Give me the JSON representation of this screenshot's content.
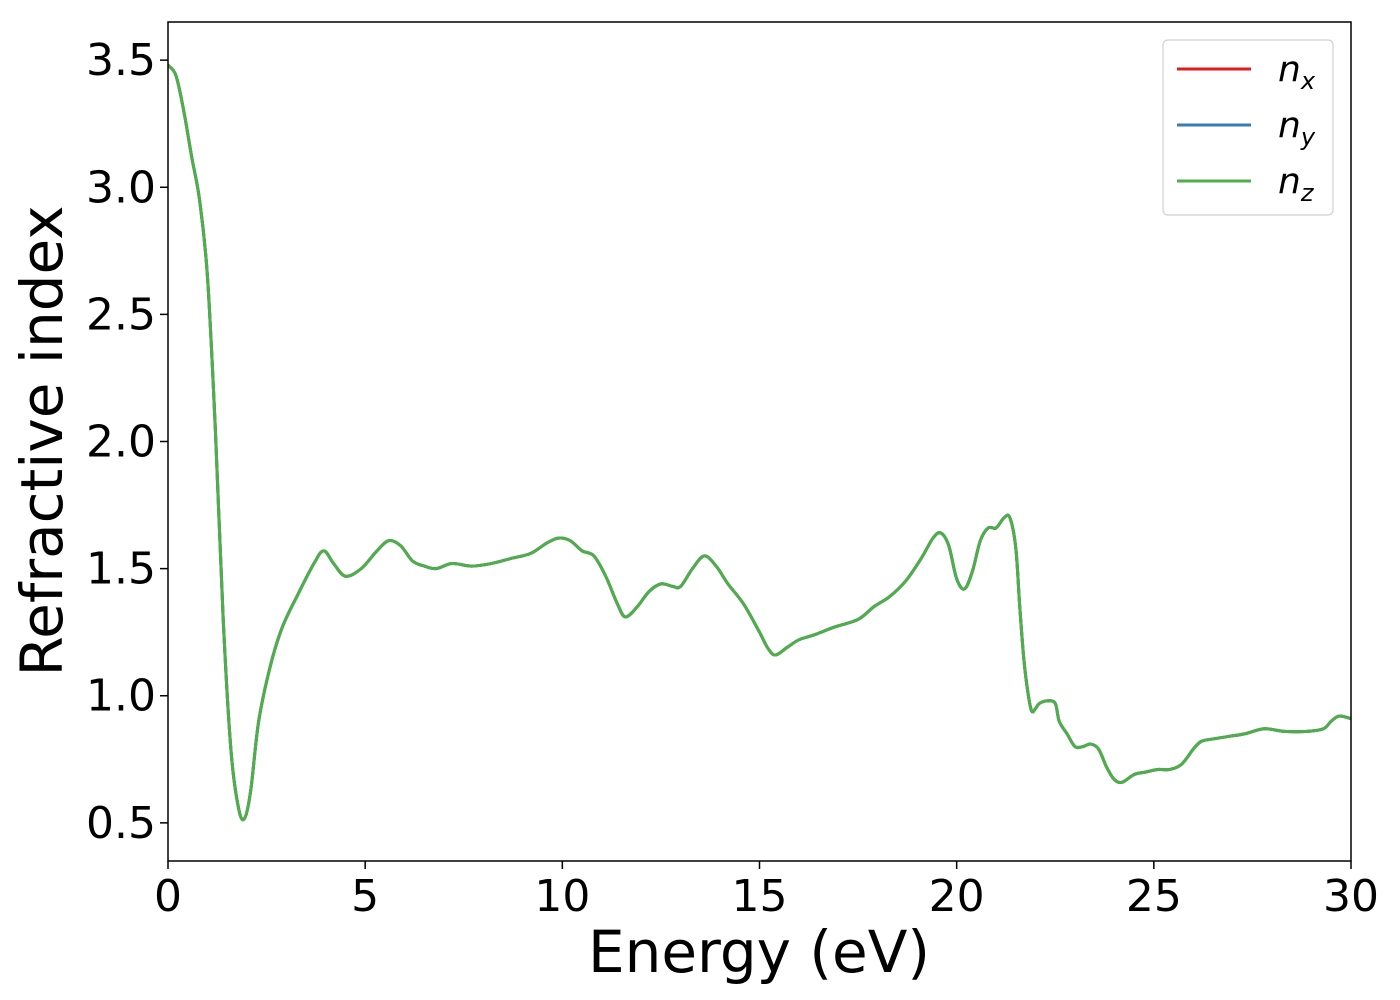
{
  "chart_data": {
    "type": "line",
    "title": "",
    "xlabel": "Energy (eV)",
    "ylabel": "Refractive index",
    "xlim": [
      0,
      30
    ],
    "ylim": [
      0.35,
      3.65
    ],
    "x_ticks": [
      0,
      5,
      10,
      15,
      20,
      25,
      30
    ],
    "x_tick_labels": [
      "0",
      "5",
      "10",
      "15",
      "20",
      "25",
      "30"
    ],
    "y_ticks": [
      0.5,
      1.0,
      1.5,
      2.0,
      2.5,
      3.0,
      3.5
    ],
    "y_tick_labels": [
      "0.5",
      "1.0",
      "1.5",
      "2.0",
      "2.5",
      "3.0",
      "3.5"
    ],
    "grid": false,
    "legend_position": "top-right",
    "x": [
      0,
      0.2,
      0.4,
      0.6,
      0.8,
      1.0,
      1.2,
      1.4,
      1.6,
      1.8,
      1.95,
      2.1,
      2.3,
      2.6,
      2.9,
      3.3,
      3.7,
      3.95,
      4.2,
      4.5,
      4.9,
      5.3,
      5.6,
      5.9,
      6.2,
      6.5,
      6.8,
      7.2,
      7.7,
      8.2,
      8.7,
      9.2,
      9.6,
      9.9,
      10.2,
      10.5,
      10.8,
      11.1,
      11.4,
      11.6,
      11.9,
      12.2,
      12.5,
      12.8,
      13.0,
      13.3,
      13.6,
      13.9,
      14.2,
      14.6,
      15.0,
      15.2,
      15.4,
      15.7,
      16.0,
      16.4,
      16.9,
      17.5,
      17.9,
      18.3,
      18.7,
      19.1,
      19.4,
      19.6,
      19.8,
      20.0,
      20.2,
      20.4,
      20.6,
      20.8,
      21.0,
      21.2,
      21.35,
      21.5,
      21.6,
      21.7,
      21.8,
      21.9,
      22.0,
      22.1,
      22.3,
      22.5,
      22.6,
      22.8,
      23.0,
      23.2,
      23.4,
      23.6,
      23.8,
      24.0,
      24.2,
      24.5,
      24.8,
      25.1,
      25.4,
      25.7,
      26.0,
      26.2,
      26.5,
      26.9,
      27.3,
      27.8,
      28.3,
      28.9,
      29.3,
      29.5,
      29.7,
      30.0
    ],
    "y_common": [
      3.48,
      3.44,
      3.3,
      3.12,
      2.95,
      2.65,
      2.05,
      1.3,
      0.78,
      0.55,
      0.52,
      0.63,
      0.9,
      1.12,
      1.27,
      1.4,
      1.52,
      1.57,
      1.52,
      1.47,
      1.5,
      1.57,
      1.61,
      1.59,
      1.53,
      1.51,
      1.5,
      1.52,
      1.51,
      1.52,
      1.54,
      1.56,
      1.6,
      1.62,
      1.61,
      1.57,
      1.55,
      1.47,
      1.36,
      1.31,
      1.35,
      1.41,
      1.44,
      1.43,
      1.43,
      1.5,
      1.55,
      1.51,
      1.44,
      1.36,
      1.25,
      1.19,
      1.16,
      1.19,
      1.22,
      1.24,
      1.27,
      1.3,
      1.35,
      1.39,
      1.45,
      1.54,
      1.62,
      1.64,
      1.59,
      1.46,
      1.42,
      1.49,
      1.61,
      1.66,
      1.66,
      1.7,
      1.7,
      1.58,
      1.35,
      1.15,
      1.02,
      0.94,
      0.95,
      0.97,
      0.98,
      0.97,
      0.9,
      0.85,
      0.8,
      0.8,
      0.81,
      0.79,
      0.72,
      0.67,
      0.66,
      0.69,
      0.7,
      0.71,
      0.71,
      0.73,
      0.79,
      0.82,
      0.83,
      0.84,
      0.85,
      0.87,
      0.86,
      0.86,
      0.87,
      0.9,
      0.92,
      0.91
    ],
    "series": [
      {
        "name": "n_x",
        "label_base": "n",
        "label_sub": "x",
        "color": "#e41a1c"
      },
      {
        "name": "n_y",
        "label_base": "n",
        "label_sub": "y",
        "color": "#377eb8"
      },
      {
        "name": "n_z",
        "label_base": "n",
        "label_sub": "z",
        "color": "#4daf4a"
      }
    ]
  }
}
